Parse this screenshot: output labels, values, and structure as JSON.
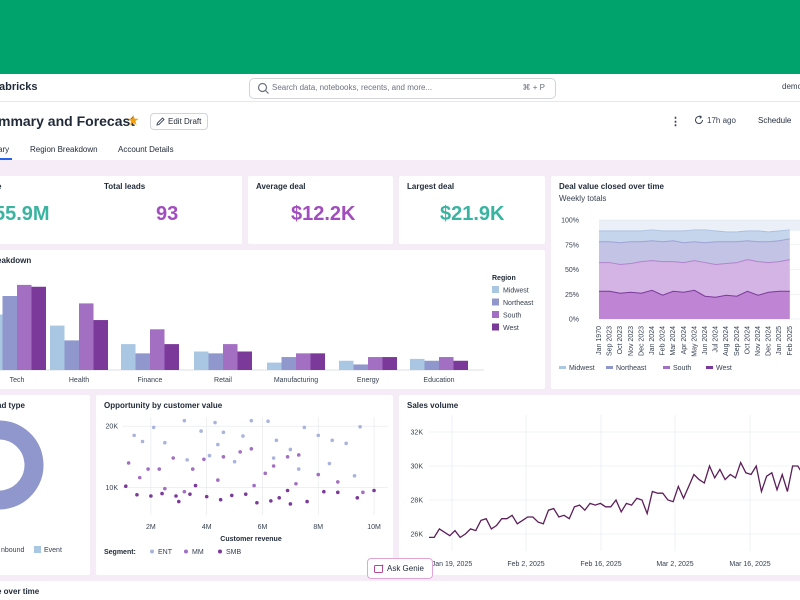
{
  "app": {
    "brand": "abricks",
    "search_placeholder": "Search data, notebooks, recents, and more...",
    "search_shortcut": "⌘ + P",
    "user": "demo"
  },
  "dashboard": {
    "title": "mmary and Forecast",
    "edit_label": "Edit Draft",
    "refresh_label": "17h ago",
    "schedule_label": "Schedule",
    "tabs": [
      "ary",
      "Region Breakdown",
      "Account Details"
    ]
  },
  "kpis": [
    {
      "title": "e",
      "value": "55.9M",
      "color": "#3ab4a1"
    },
    {
      "title": "Total leads",
      "value": "93",
      "color": "#a24dbf"
    },
    {
      "title": "Average deal",
      "value": "$12.2K",
      "color": "#a24dbf"
    },
    {
      "title": "Largest deal",
      "value": "$21.9K",
      "color": "#3ab4a1"
    }
  ],
  "colors": {
    "midwest": "#a9c7e2",
    "northeast": "#8f97cc",
    "south": "#a26fc2",
    "west": "#7b3a9a",
    "accent": "#00a36c",
    "line": "#5c1f5a"
  },
  "region_chart": {
    "title": "eakdown",
    "legend_title": "Region",
    "chart_data": {
      "type": "bar",
      "categories": [
        "Tech",
        "Health",
        "Finance",
        "Retail",
        "Manufacturing",
        "Energy",
        "Education"
      ],
      "series": [
        {
          "name": "Midwest",
          "values": [
            3.0,
            2.4,
            1.4,
            1.0,
            0.4,
            0.5,
            0.6
          ]
        },
        {
          "name": "Northeast",
          "values": [
            4.0,
            1.6,
            0.9,
            0.9,
            0.7,
            0.3,
            0.5
          ]
        },
        {
          "name": "South",
          "values": [
            4.6,
            3.6,
            2.2,
            1.4,
            0.9,
            0.7,
            0.7
          ]
        },
        {
          "name": "West",
          "values": [
            4.5,
            2.7,
            1.4,
            1.0,
            0.9,
            0.7,
            0.5
          ]
        }
      ]
    }
  },
  "area_chart": {
    "title": "Deal value closed over time",
    "subtitle": "Weekly totals",
    "chart_data": {
      "type": "area",
      "stacking": "percent",
      "y_ticks": [
        "100%",
        "75%",
        "50%",
        "25%",
        "0%"
      ],
      "x": [
        "Jan 1970",
        "Sep 2023",
        "Oct 2023",
        "Nov 2023",
        "Dec 2023",
        "Jan 2024",
        "Feb 2024",
        "Mar 2024",
        "Apr 2024",
        "May 2024",
        "Jun 2024",
        "Jul 2024",
        "Aug 2024",
        "Sep 2024",
        "Oct 2024",
        "Nov 2024",
        "Dec 2024",
        "Jan 2025",
        "Feb 2025"
      ],
      "series": [
        {
          "name": "Midwest",
          "boundaries": [
            89,
            89,
            89,
            89,
            89,
            90,
            89,
            89,
            89,
            90,
            90,
            89,
            88,
            88,
            89,
            89,
            88,
            89,
            90
          ]
        },
        {
          "name": "Northeast",
          "boundaries": [
            78,
            78,
            77,
            78,
            78,
            79,
            78,
            79,
            77,
            78,
            77,
            78,
            78,
            78,
            79,
            78,
            78,
            79,
            81
          ]
        },
        {
          "name": "South",
          "boundaries": [
            57,
            57,
            55,
            56,
            58,
            59,
            58,
            58,
            57,
            59,
            57,
            55,
            56,
            57,
            60,
            58,
            57,
            58,
            60
          ]
        },
        {
          "name": "West",
          "boundaries": [
            28,
            28,
            26,
            27,
            26,
            29,
            24,
            28,
            27,
            29,
            23,
            22,
            24,
            23,
            28,
            24,
            27,
            28,
            28
          ]
        }
      ]
    }
  },
  "donut_chart": {
    "title": "ad type",
    "chart_data": {
      "type": "pie",
      "labels": [
        "Inbound",
        "Event"
      ],
      "values": [
        70,
        30
      ],
      "legend_visible": [
        "nbound",
        "Event"
      ]
    }
  },
  "scatter_chart": {
    "title": "Opportunity by customer value",
    "xlabel": "Customer revenue",
    "segment_label": "Segment:",
    "chart_data": {
      "type": "scatter",
      "x_ticks": [
        "2M",
        "4M",
        "6M",
        "8M",
        "10M"
      ],
      "y_ticks": [
        "20K",
        "10K"
      ],
      "xlim": [
        1.0,
        10.5
      ],
      "ylim": [
        5.5,
        21.5
      ],
      "series": [
        {
          "name": "ENT",
          "points": [
            [
              1.4,
              18.5
            ],
            [
              1.7,
              17.5
            ],
            [
              2.1,
              19.8
            ],
            [
              2.5,
              17.3
            ],
            [
              3.2,
              20.9
            ],
            [
              3.8,
              19.2
            ],
            [
              4.3,
              20.6
            ],
            [
              4.4,
              17.0
            ],
            [
              4.6,
              19.0
            ],
            [
              5.3,
              18.4
            ],
            [
              5.6,
              20.9
            ],
            [
              6.2,
              20.8
            ],
            [
              6.5,
              17.7
            ],
            [
              7.0,
              16.2
            ],
            [
              7.5,
              19.8
            ],
            [
              8.0,
              18.5
            ],
            [
              8.5,
              17.7
            ],
            [
              9.0,
              17.2
            ],
            [
              9.5,
              19.9
            ],
            [
              3.3,
              14.5
            ],
            [
              5.0,
              14.2
            ],
            [
              6.4,
              14.8
            ],
            [
              7.3,
              13.0
            ],
            [
              8.4,
              13.9
            ],
            [
              9.3,
              11.9
            ],
            [
              4.1,
              15.2
            ]
          ]
        },
        {
          "name": "MM",
          "points": [
            [
              1.2,
              14.0
            ],
            [
              1.6,
              11.6
            ],
            [
              1.9,
              13.0
            ],
            [
              2.3,
              13.0
            ],
            [
              2.8,
              14.8
            ],
            [
              3.5,
              13.0
            ],
            [
              3.9,
              14.6
            ],
            [
              4.6,
              15.0
            ],
            [
              5.2,
              15.8
            ],
            [
              5.6,
              16.3
            ],
            [
              6.1,
              12.3
            ],
            [
              6.4,
              13.5
            ],
            [
              6.9,
              15.0
            ],
            [
              7.3,
              15.3
            ],
            [
              8.0,
              12.1
            ],
            [
              8.7,
              10.9
            ],
            [
              9.6,
              9.2
            ],
            [
              2.5,
              9.8
            ],
            [
              3.2,
              9.3
            ],
            [
              4.4,
              11.2
            ],
            [
              5.7,
              10.3
            ],
            [
              7.2,
              10.6
            ]
          ]
        },
        {
          "name": "SMB",
          "points": [
            [
              1.1,
              10.2
            ],
            [
              1.5,
              8.8
            ],
            [
              2.0,
              8.6
            ],
            [
              2.4,
              9.0
            ],
            [
              2.9,
              8.6
            ],
            [
              3.4,
              8.9
            ],
            [
              3.6,
              10.3
            ],
            [
              4.0,
              8.5
            ],
            [
              4.5,
              8.0
            ],
            [
              4.9,
              8.7
            ],
            [
              5.4,
              8.9
            ],
            [
              5.8,
              7.5
            ],
            [
              6.3,
              7.8
            ],
            [
              6.6,
              8.3
            ],
            [
              6.9,
              9.5
            ],
            [
              7.6,
              7.7
            ],
            [
              8.2,
              9.3
            ],
            [
              8.7,
              9.2
            ],
            [
              9.4,
              8.3
            ],
            [
              10.0,
              9.5
            ],
            [
              7.0,
              7.3
            ],
            [
              3.0,
              7.7
            ]
          ]
        }
      ]
    }
  },
  "sales_chart": {
    "title": "Sales volume",
    "chart_data": {
      "type": "line",
      "y_ticks": [
        "32K",
        "30K",
        "28K",
        "26K"
      ],
      "ylim": [
        25000,
        33000
      ],
      "x_ticks": [
        "Jan 19, 2025",
        "Feb 2, 2025",
        "Feb 16, 2025",
        "Mar 2, 2025",
        "Mar 16, 2025"
      ],
      "x_start": "Jan 15, 2025",
      "x_end": "Mar 24, 2025",
      "values": [
        25800,
        25800,
        26300,
        26100,
        25900,
        26200,
        25800,
        26000,
        26300,
        26200,
        26800,
        26900,
        26300,
        26500,
        26900,
        26900,
        27100,
        26600,
        26800,
        27000,
        27000,
        26700,
        26600,
        27400,
        27500,
        27000,
        27100,
        26900,
        27600,
        27700,
        27400,
        27800,
        27700,
        27800,
        27600,
        27600,
        28000,
        27300,
        27800,
        27700,
        28100,
        28000,
        27200,
        28500,
        28400,
        28400,
        28000,
        27900,
        28800,
        28100,
        28800,
        29500,
        29200,
        29000,
        30000,
        29300,
        29800,
        29200,
        29500,
        29300,
        30200,
        29600,
        29500,
        30000,
        28500,
        29400,
        29600,
        28600,
        29500,
        28500,
        30000,
        30000,
        29500
      ]
    }
  },
  "bottom": {
    "title": "e over time"
  },
  "genie": {
    "label": "Ask Genie"
  }
}
